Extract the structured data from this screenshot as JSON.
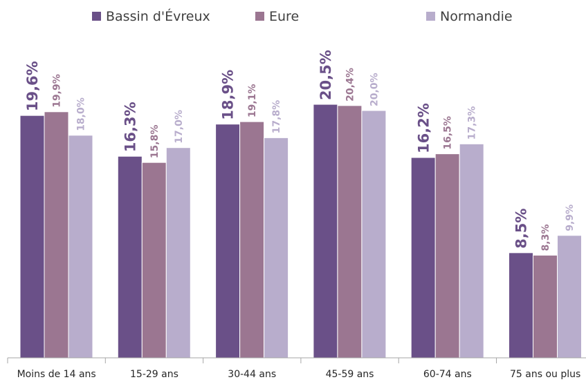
{
  "chart_data": {
    "type": "bar",
    "categories": [
      "Moins de 14 ans",
      "15-29 ans",
      "30-44 ans",
      "45-59 ans",
      "60-74 ans",
      "75 ans ou plus"
    ],
    "series": [
      {
        "name": "Bassin d'Évreux",
        "color": "#6a5088",
        "values": [
          19.6,
          16.3,
          18.9,
          20.5,
          16.2,
          8.5
        ],
        "labels": [
          "19,6%",
          "16,3%",
          "18,9%",
          "20,5%",
          "16,2%",
          "8,5%"
        ]
      },
      {
        "name": "Eure",
        "color": "#9b7691",
        "values": [
          19.9,
          15.8,
          19.1,
          20.4,
          16.5,
          8.3
        ],
        "labels": [
          "19,9%",
          "15,8%",
          "19,1%",
          "20,4%",
          "16,5%",
          "8,3%"
        ]
      },
      {
        "name": "Normandie",
        "color": "#b8adcc",
        "values": [
          18.0,
          17.0,
          17.8,
          20.0,
          17.3,
          9.9
        ],
        "labels": [
          "18,0%",
          "17,0%",
          "17,8%",
          "20,0%",
          "17,3%",
          "9,9%"
        ]
      }
    ],
    "ylim": [
      0,
      24
    ],
    "grid": false,
    "legend": "top-center",
    "xlabel": "",
    "ylabel": ""
  }
}
